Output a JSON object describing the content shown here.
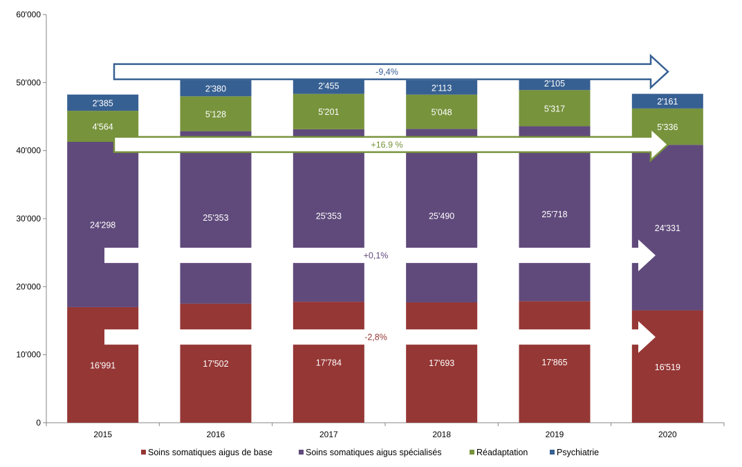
{
  "chart_data": {
    "type": "bar",
    "stacked": true,
    "categories": [
      "2015",
      "2016",
      "2017",
      "2018",
      "2019",
      "2020"
    ],
    "series": [
      {
        "name": "Soins somatiques aigus de base",
        "color": "#953735",
        "values": [
          16991,
          17502,
          17784,
          17693,
          17865,
          16519
        ],
        "labels": [
          "16'991",
          "17'502",
          "17'784",
          "17'693",
          "17'865",
          "16'519"
        ]
      },
      {
        "name": "Soins somatiques aigus spécialisés",
        "color": "#604a7b",
        "values": [
          24298,
          25353,
          25353,
          25490,
          25718,
          24331
        ],
        "labels": [
          "24'298",
          "25'353",
          "25'353",
          "25'490",
          "25'718",
          "24'331"
        ]
      },
      {
        "name": "Réadaptation",
        "color": "#77933c",
        "values": [
          4564,
          5128,
          5201,
          5048,
          5317,
          5336
        ],
        "labels": [
          "4'564",
          "5'128",
          "5'201",
          "5'048",
          "5'317",
          "5'336"
        ]
      },
      {
        "name": "Psychiatrie",
        "color": "#376092",
        "values": [
          2385,
          2380,
          2455,
          2113,
          2105,
          2161
        ],
        "labels": [
          "2'385",
          "2'380",
          "2'455",
          "2'113",
          "2'105",
          "2'161"
        ]
      }
    ],
    "ylim": [
      0,
      60000
    ],
    "yticks": [
      0,
      10000,
      20000,
      30000,
      40000,
      50000,
      60000
    ],
    "ytick_labels": [
      "0",
      "10'000",
      "20'000",
      "30'000",
      "40'000",
      "50'000",
      "60'000"
    ],
    "grid": false,
    "legend_position": "bottom",
    "annotations": [
      {
        "text": "-9,4%",
        "series": "Psychiatrie",
        "level": 51600,
        "outline": "#376092",
        "text_color": "#376092"
      },
      {
        "text": "+16.9 %",
        "series": "Réadaptation",
        "level": 40900,
        "outline": "#77933c",
        "text_color": "#77933c"
      },
      {
        "text": "+0,1%",
        "series": "Soins somatiques aigus spécialisés",
        "level": 24600,
        "outline": "#ffffff",
        "text_color": "#604a7b"
      },
      {
        "text": "-2,8%",
        "series": "Soins somatiques aigus de base",
        "level": 12600,
        "outline": "#ffffff",
        "text_color": "#953735"
      }
    ]
  }
}
